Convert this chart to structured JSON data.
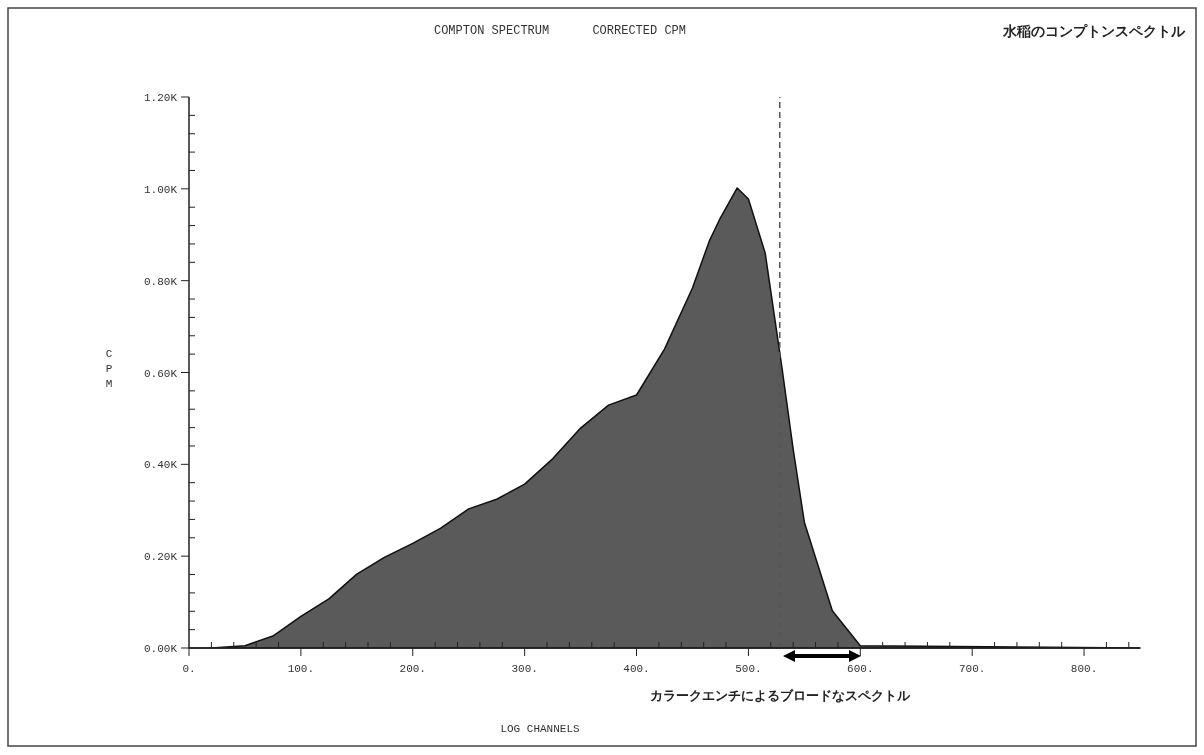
{
  "chart_data": {
    "type": "area",
    "title": "COMPTON SPECTRUM      CORRECTED CPM",
    "subtitle": "水稲のコンプトンスペクトル",
    "xlabel": "LOG CHANNELS",
    "ylabel": "CPM",
    "x": [
      0,
      20,
      50,
      75,
      100,
      125,
      150,
      175,
      200,
      225,
      250,
      275,
      300,
      325,
      350,
      375,
      400,
      425,
      450,
      465,
      475,
      490,
      500,
      515,
      530,
      540,
      550,
      575,
      600,
      850
    ],
    "series": [
      {
        "color": "#5a5a5a",
        "values": [
          0.0,
          0.0,
          0.005,
          0.026,
          0.069,
          0.107,
          0.161,
          0.198,
          0.228,
          0.261,
          0.303,
          0.324,
          0.357,
          0.412,
          0.479,
          0.529,
          0.551,
          0.651,
          0.784,
          0.886,
          0.937,
          1.002,
          0.978,
          0.86,
          0.61,
          0.433,
          0.274,
          0.081,
          0.005,
          0.0
        ]
      }
    ],
    "xlim": [
      0,
      850
    ],
    "ylim": [
      0,
      1.2
    ],
    "xticks": [
      {
        "value": 0,
        "label": "0."
      },
      {
        "value": 100,
        "label": "100."
      },
      {
        "value": 200,
        "label": "200."
      },
      {
        "value": 300,
        "label": "300."
      },
      {
        "value": 400,
        "label": "400."
      },
      {
        "value": 500,
        "label": "500."
      },
      {
        "value": 600,
        "label": "600."
      },
      {
        "value": 700,
        "label": "700."
      },
      {
        "value": 800,
        "label": "800."
      }
    ],
    "yticks": [
      {
        "value": 0,
        "label": "0.00K"
      },
      {
        "value": 0.2,
        "label": "0.20K"
      },
      {
        "value": 0.4,
        "label": "0.40K"
      },
      {
        "value": 0.6,
        "label": "0.60K"
      },
      {
        "value": 0.8,
        "label": "0.80K"
      },
      {
        "value": 1.0,
        "label": "1.00K"
      },
      {
        "value": 1.2,
        "label": "1.20K"
      }
    ],
    "ref_lines": [
      {
        "axis": "x",
        "value": 528,
        "line_style": "dashed",
        "color": "#555555"
      }
    ],
    "annotations": [
      "カラークエンチによるブロードなスペクトル"
    ],
    "grid": false
  }
}
